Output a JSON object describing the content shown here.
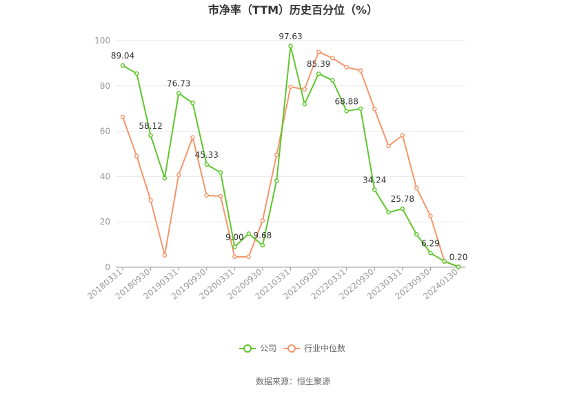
{
  "chart_data": {
    "type": "line",
    "title": "市净率（TTM）历史百分位（%）",
    "ylim": [
      0,
      100
    ],
    "yticks": [
      0,
      20,
      40,
      60,
      80,
      100
    ],
    "x_tick_labels": [
      "20180331",
      "20180930",
      "20190331",
      "20190930",
      "20200331",
      "20200930",
      "20210331",
      "20210930",
      "20220331",
      "20220930",
      "20230331",
      "20230930",
      "20240130"
    ],
    "x": [
      "20180331",
      "20180630",
      "20180930",
      "20181231",
      "20190331",
      "20190630",
      "20190930",
      "20191231",
      "20200331",
      "20200630",
      "20200930",
      "20201231",
      "20210331",
      "20210630",
      "20210930",
      "20211231",
      "20220331",
      "20220630",
      "20220930",
      "20221231",
      "20230331",
      "20230630",
      "20230930",
      "20231231",
      "20240130"
    ],
    "series": [
      {
        "name": "公司",
        "color": "#5cc72a",
        "values": [
          89.04,
          85.5,
          58.12,
          39.3,
          76.73,
          72.5,
          45.33,
          41.8,
          9.0,
          14.8,
          9.68,
          38.2,
          97.63,
          72.0,
          85.39,
          82.5,
          68.88,
          70.0,
          34.24,
          24.2,
          25.78,
          14.5,
          6.29,
          2.6,
          0.2
        ],
        "labels": {
          "0": "89.04",
          "2": "58.12",
          "4": "76.73",
          "6": "45.33",
          "8": "9.00",
          "10": "9.68",
          "12": "97.63",
          "14": "85.39",
          "16": "68.88",
          "18": "34.24",
          "20": "25.78",
          "22": "6.29",
          "24": "0.20"
        }
      },
      {
        "name": "行业中位数",
        "color": "#f5956a",
        "values": [
          66.3,
          49.0,
          29.5,
          5.3,
          40.8,
          57.3,
          31.7,
          31.3,
          4.6,
          4.6,
          20.6,
          49.6,
          79.6,
          78.5,
          95.0,
          92.3,
          88.3,
          86.8,
          69.8,
          53.5,
          58.2,
          35.0,
          22.6,
          2.5,
          0.2
        ]
      }
    ],
    "legend": "bottom",
    "source": "数据来源：恒生聚源"
  }
}
